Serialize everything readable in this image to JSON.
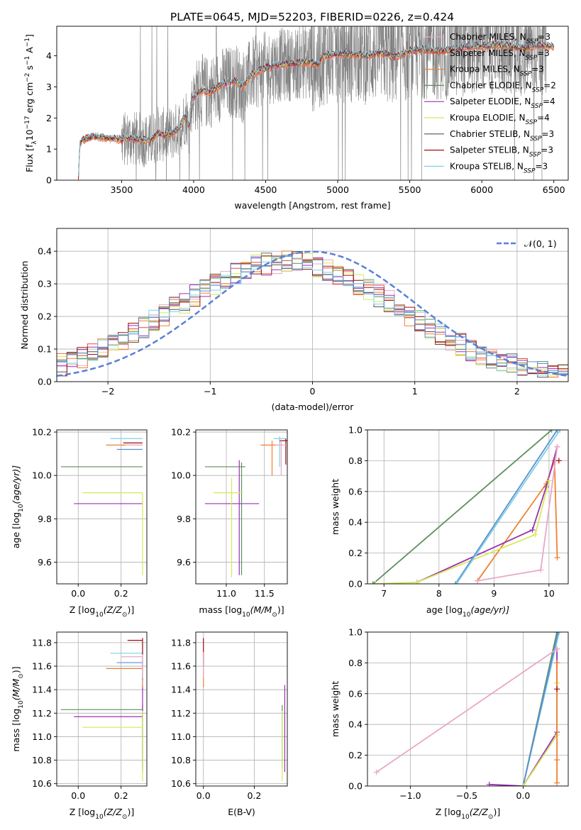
{
  "figure_title": "PLATE=0645, MJD=52203, FIBERID=0226, z=0.424",
  "chart_data": [
    {
      "id": "spectrum",
      "type": "line",
      "xlabel": "wavelength [Angstrom, rest frame]",
      "ylabel_parts": [
        "Flux [f",
        "λ",
        "10",
        "−17",
        " erg cm",
        "−2",
        " s",
        "−1",
        " A",
        "−1",
        "]"
      ],
      "xlim": [
        3050,
        6600
      ],
      "ylim": [
        0,
        4.95
      ],
      "xticks": [
        3500,
        4000,
        4500,
        5000,
        5500,
        6000,
        6500
      ],
      "yticks": [
        0,
        1,
        2,
        3,
        4
      ],
      "legend": [
        {
          "label": "Chabrier MILES, N",
          "sub": "SSP",
          "tail": "=3",
          "color": "#e9a8c8"
        },
        {
          "label": "Salpeter MILES, N",
          "sub": "SSP",
          "tail": "=3",
          "color": "#e34a33"
        },
        {
          "label": "Kroupa MILES, N",
          "sub": "SSP",
          "tail": "=3",
          "color": "#f08030"
        },
        {
          "label": "Chabrier ELODIE, N",
          "sub": "SSP",
          "tail": "=2",
          "color": "#5e8e5e"
        },
        {
          "label": "Salpeter ELODIE, N",
          "sub": "SSP",
          "tail": "=4",
          "color": "#9b30b0"
        },
        {
          "label": "Kroupa ELODIE, N",
          "sub": "SSP",
          "tail": "=4",
          "color": "#d4ea5a"
        },
        {
          "label": "Chabrier STELIB, N",
          "sub": "SSP",
          "tail": "=3",
          "color": "#555555"
        },
        {
          "label": "Salpeter STELIB, N",
          "sub": "SSP",
          "tail": "=3",
          "color": "#a01010"
        },
        {
          "label": "Kroupa STELIB, N",
          "sub": "SSP",
          "tail": "=3",
          "color": "#7fd0e8"
        }
      ],
      "model_continuum": {
        "x": [
          3200,
          3210,
          3230,
          3300,
          3400,
          3500,
          3550,
          3650,
          3700,
          3750,
          3800,
          3850,
          3900,
          3950,
          3960,
          3970,
          3990,
          4050,
          4100,
          4200,
          4300,
          4340,
          4400,
          4500,
          4600,
          4700,
          4800,
          4861,
          4900,
          5000,
          5100,
          5200,
          5300,
          5400,
          5500,
          5600,
          5700,
          5800,
          5900,
          6000,
          6100,
          6200,
          6300,
          6400,
          6500
        ],
        "y": [
          0,
          1.2,
          1.3,
          1.4,
          1.35,
          1.3,
          1.35,
          1.3,
          1.25,
          1.5,
          1.45,
          1.5,
          1.7,
          2.1,
          1.8,
          1.7,
          2.6,
          2.9,
          2.8,
          3.1,
          3.2,
          3.0,
          3.4,
          3.6,
          3.7,
          3.75,
          3.8,
          3.7,
          4.0,
          4.05,
          4.05,
          4.0,
          4.1,
          3.95,
          4.15,
          4.2,
          4.15,
          4.2,
          4.3,
          4.3,
          4.35,
          4.3,
          4.25,
          4.35,
          4.3
        ]
      },
      "observed_xrange": [
        3200,
        6450
      ]
    },
    {
      "id": "residual_hist",
      "type": "area",
      "xlabel": "(data-model)/error",
      "ylabel": "Normed distribution",
      "xlim": [
        -2.5,
        2.5
      ],
      "ylim": [
        0,
        0.47
      ],
      "xticks": [
        -2,
        -1,
        0,
        1,
        2
      ],
      "xtick_labels": [
        "−2",
        "−1",
        "0",
        "1",
        "2"
      ],
      "yticks": [
        0.0,
        0.1,
        0.2,
        0.3,
        0.4
      ],
      "ytick_labels": [
        "0.0",
        "0.1",
        "0.2",
        "0.3",
        "0.4"
      ],
      "legend_label": "𝒩(0, 1)",
      "gaussian_color": "#5b7fd6",
      "hist_colors": [
        "#e9a8c8",
        "#e34a33",
        "#f08030",
        "#5e8e5e",
        "#9b30b0",
        "#d4ea5a",
        "#555555",
        "#a01010",
        "#7fd0e8",
        "#5b8fd0"
      ]
    },
    {
      "id": "age_vs_Z",
      "type": "scatter",
      "xlabel_parts": [
        "Z [log",
        "10",
        "(Z/Z",
        "⊙",
        ")]"
      ],
      "ylabel_parts": [
        "age  [log",
        "10",
        "(age/yr)]"
      ],
      "xlim": [
        -0.1,
        0.32
      ],
      "ylim": [
        9.5,
        10.21
      ],
      "xticks": [
        0.0,
        0.2
      ],
      "xtick_labels": [
        "0.0",
        "0.2"
      ],
      "yticks": [
        9.6,
        9.8,
        10.0,
        10.2
      ],
      "ytick_labels": [
        "9.6",
        "9.8",
        "10.0",
        "10.2"
      ],
      "errorbars": [
        {
          "color": "#5e8e5e",
          "x": 0.3,
          "xerr_lo": 0.38,
          "y": 10.04
        },
        {
          "color": "#9b30b0",
          "x": 0.3,
          "xerr_lo": 0.32,
          "y": 9.87
        },
        {
          "color": "#d4ea5a",
          "x": 0.3,
          "xerr_lo": 0.28,
          "y": 9.92,
          "yerr_lo": 0.38
        },
        {
          "color": "#f08030",
          "x": 0.3,
          "xerr_lo": 0.17,
          "y": 10.14
        },
        {
          "color": "#7fd0e8",
          "x": 0.3,
          "xerr_lo": 0.15,
          "y": 10.17
        },
        {
          "color": "#5b8fd0",
          "x": 0.3,
          "xerr_lo": 0.12,
          "y": 10.12
        },
        {
          "color": "#e9a8c8",
          "x": 0.3,
          "xerr_lo": 0.08,
          "y": 10.14
        },
        {
          "color": "#a01010",
          "x": 0.3,
          "xerr_lo": 0.09,
          "y": 10.15
        }
      ]
    },
    {
      "id": "age_vs_mass",
      "type": "scatter",
      "xlabel_parts": [
        "mass [log",
        "10",
        "(M/M",
        "⊙",
        ")]"
      ],
      "xlim": [
        10.6,
        11.8
      ],
      "ylim": [
        9.5,
        10.21
      ],
      "xticks": [
        11.0,
        11.5
      ],
      "xtick_labels": [
        "11.0",
        "11.5"
      ],
      "yticks": [
        9.6,
        9.8,
        10.0,
        10.2
      ],
      "ytick_labels": [
        "9.6",
        "9.8",
        "10.0",
        "10.2"
      ],
      "errorbars": [
        {
          "color": "#5e8e5e",
          "x": 11.2,
          "xlo": 10.72,
          "xhi": 11.25,
          "y": 10.04,
          "ylo": 9.54,
          "yhi": 10.06
        },
        {
          "color": "#9b30b0",
          "x": 11.17,
          "xlo": 10.72,
          "xhi": 11.43,
          "y": 9.87,
          "ylo": 9.54,
          "yhi": 10.07
        },
        {
          "color": "#d4ea5a",
          "x": 11.07,
          "xlo": 10.83,
          "xhi": 11.22,
          "y": 9.92,
          "ylo": 9.53,
          "yhi": 9.99
        },
        {
          "color": "#f08030",
          "x": 11.6,
          "xlo": 11.45,
          "xhi": 11.68,
          "y": 10.14,
          "ylo": 10.0,
          "yhi": 10.16
        },
        {
          "color": "#7fd0e8",
          "x": 11.7,
          "xlo": 11.62,
          "xhi": 11.78,
          "y": 10.17,
          "ylo": 10.04,
          "yhi": 10.18
        },
        {
          "color": "#a01010",
          "x": 11.78,
          "xlo": 11.7,
          "xhi": 11.86,
          "y": 10.16,
          "ylo": 10.05,
          "yhi": 10.17
        },
        {
          "color": "#e9a8c8",
          "x": 11.72,
          "xlo": 11.65,
          "xhi": 11.8,
          "y": 10.14,
          "ylo": 10.0,
          "yhi": 10.16
        }
      ]
    },
    {
      "id": "weight_vs_age",
      "type": "line",
      "xlabel_parts": [
        "age  [log",
        "10",
        "(age/yr)]"
      ],
      "ylabel": "mass weight",
      "xlim": [
        6.7,
        10.35
      ],
      "ylim": [
        0,
        1.0
      ],
      "xticks": [
        7,
        8,
        9,
        10
      ],
      "xtick_labels": [
        "7",
        "8",
        "9",
        "10"
      ],
      "yticks": [
        0.0,
        0.2,
        0.4,
        0.6,
        0.8,
        1.0
      ],
      "ytick_labels": [
        "0.0",
        "0.2",
        "0.4",
        "0.6",
        "0.8",
        "1.0"
      ],
      "series": [
        {
          "color": "#5e8e5e",
          "x": [
            6.8,
            10.05
          ],
          "y": [
            0.0,
            1.0
          ]
        },
        {
          "color": "#f08030",
          "x": [
            8.7,
            9.95,
            10.1,
            10.15
          ],
          "y": [
            0.02,
            0.65,
            0.8,
            0.17
          ]
        },
        {
          "color": "#9b30b0",
          "x": [
            7.6,
            9.7,
            9.95,
            10.15
          ],
          "y": [
            0.01,
            0.35,
            0.63,
            0.89
          ]
        },
        {
          "color": "#d4ea5a",
          "x": [
            6.85,
            7.6,
            9.75,
            10.0
          ],
          "y": [
            0.0,
            0.01,
            0.32,
            0.67
          ]
        },
        {
          "color": "#5b8fd0",
          "x": [
            8.3,
            10.15
          ],
          "y": [
            0.0,
            1.0
          ]
        },
        {
          "color": "#7fd0e8",
          "x": [
            8.32,
            10.2
          ],
          "y": [
            0.0,
            1.0
          ]
        },
        {
          "color": "#e9a8c8",
          "x": [
            8.7,
            9.85,
            10.15
          ],
          "y": [
            0.02,
            0.09,
            0.89
          ]
        },
        {
          "color": "#a01010",
          "x": [
            10.18
          ],
          "y": [
            0.8
          ]
        }
      ]
    },
    {
      "id": "mass_vs_Z",
      "type": "scatter",
      "xlabel_parts": [
        "Z [log",
        "10",
        "(Z/Z",
        "⊙",
        ")]"
      ],
      "ylabel_parts": [
        "mass [log",
        "10",
        "(M/M",
        "⊙",
        ")]"
      ],
      "xlim": [
        -0.1,
        0.32
      ],
      "ylim": [
        10.58,
        11.89
      ],
      "xticks": [
        0.0,
        0.2
      ],
      "xtick_labels": [
        "0.0",
        "0.2"
      ],
      "yticks": [
        10.6,
        10.8,
        11.0,
        11.2,
        11.4,
        11.6,
        11.8
      ],
      "ytick_labels": [
        "10.6",
        "10.8",
        "11.0",
        "11.2",
        "11.4",
        "11.6",
        "11.8"
      ],
      "errorbars": [
        {
          "color": "#5e8e5e",
          "x": 0.3,
          "xlo": -0.08,
          "y": 11.23,
          "ylo": 10.73,
          "yhi": 11.27
        },
        {
          "color": "#9b30b0",
          "x": 0.3,
          "xlo": -0.02,
          "y": 11.17,
          "ylo": 10.7,
          "yhi": 11.44
        },
        {
          "color": "#d4ea5a",
          "x": 0.3,
          "xlo": 0.02,
          "y": 11.08,
          "ylo": 10.62,
          "yhi": 11.22
        },
        {
          "color": "#f08030",
          "x": 0.3,
          "xlo": 0.13,
          "y": 11.58,
          "ylo": 11.42,
          "yhi": 11.65
        },
        {
          "color": "#7fd0e8",
          "x": 0.3,
          "xlo": 0.15,
          "y": 11.71,
          "ylo": 11.6,
          "yhi": 11.79
        },
        {
          "color": "#5b8fd0",
          "x": 0.3,
          "xlo": 0.18,
          "y": 11.63,
          "ylo": 11.48,
          "yhi": 11.67
        },
        {
          "color": "#e9a8c8",
          "x": 0.3,
          "xlo": 0.2,
          "y": 11.68,
          "ylo": 11.5,
          "yhi": 11.72
        },
        {
          "color": "#a01010",
          "x": 0.3,
          "xlo": 0.23,
          "y": 11.82,
          "ylo": 11.7,
          "yhi": 11.84
        }
      ]
    },
    {
      "id": "mass_vs_ebv",
      "type": "scatter",
      "xlabel": "E(B-V)",
      "xlim": [
        -0.03,
        0.33
      ],
      "ylim": [
        10.58,
        11.89
      ],
      "xticks": [
        0.0,
        0.2
      ],
      "xtick_labels": [
        "0.0",
        "0.2"
      ],
      "yticks": [
        10.6,
        10.8,
        11.0,
        11.2,
        11.4,
        11.6,
        11.8
      ],
      "ytick_labels": [
        "10.6",
        "10.8",
        "11.0",
        "11.2",
        "11.4",
        "11.6",
        "11.8"
      ],
      "errorbars": [
        {
          "color": "#f08030",
          "x": 0.0,
          "ylo": 11.42,
          "yhi": 11.65
        },
        {
          "color": "#7fd0e8",
          "x": 0.0,
          "ylo": 11.55,
          "yhi": 11.79
        },
        {
          "color": "#a01010",
          "x": 0.0,
          "ylo": 11.6,
          "yhi": 11.84
        },
        {
          "color": "#e9a8c8",
          "x": 0.0,
          "ylo": 11.5,
          "yhi": 11.72
        },
        {
          "color": "#5e8e5e",
          "x": 0.31,
          "ylo": 10.73,
          "yhi": 11.27
        },
        {
          "color": "#9b30b0",
          "x": 0.32,
          "ylo": 10.7,
          "yhi": 11.44
        },
        {
          "color": "#d4ea5a",
          "x": 0.31,
          "ylo": 10.62,
          "yhi": 11.22
        }
      ]
    },
    {
      "id": "weight_vs_Z",
      "type": "line",
      "xlabel_parts": [
        "Z [log",
        "10",
        "(Z/Z",
        "⊙",
        ")]"
      ],
      "ylabel": "mass weight",
      "xlim": [
        -1.38,
        0.4
      ],
      "ylim": [
        0,
        1.0
      ],
      "xticks": [
        -1.0,
        -0.5,
        0.0
      ],
      "xtick_labels": [
        "−1.0",
        "−0.5",
        "0.0"
      ],
      "yticks": [
        0.0,
        0.2,
        0.4,
        0.6,
        0.8,
        1.0
      ],
      "ytick_labels": [
        "0.0",
        "0.2",
        "0.4",
        "0.6",
        "0.8",
        "1.0"
      ],
      "series": [
        {
          "color": "#5e8e5e",
          "x": [
            0.0,
            0.3
          ],
          "y": [
            0.0,
            1.0
          ]
        },
        {
          "color": "#7fd0e8",
          "x": [
            0.0,
            0.32
          ],
          "y": [
            0.0,
            1.0
          ]
        },
        {
          "color": "#5b8fd0",
          "x": [
            0.0,
            0.31
          ],
          "y": [
            0.0,
            1.0
          ]
        },
        {
          "color": "#9b30b0",
          "x": [
            -0.3,
            0.0,
            0.3,
            0.3
          ],
          "y": [
            0.01,
            0.0,
            0.35,
            0.89
          ]
        },
        {
          "color": "#d4ea5a",
          "x": [
            0.0,
            0.3,
            0.3
          ],
          "y": [
            0.0,
            0.33,
            0.67
          ]
        },
        {
          "color": "#f08030",
          "x": [
            0.3,
            0.3,
            0.3
          ],
          "y": [
            0.02,
            0.17,
            0.8
          ]
        },
        {
          "color": "#e9a8c8",
          "x": [
            -1.3,
            0.3
          ],
          "y": [
            0.09,
            0.89
          ]
        },
        {
          "color": "#a01010",
          "x": [
            0.3
          ],
          "y": [
            0.63
          ]
        }
      ]
    }
  ]
}
